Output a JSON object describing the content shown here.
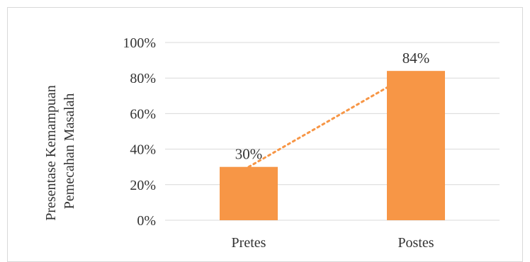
{
  "chart_data": {
    "type": "bar",
    "categories": [
      "Pretes",
      "Postes"
    ],
    "values": [
      30,
      84
    ],
    "data_labels": [
      "30%",
      "84%"
    ],
    "ylabel_lines": [
      "Presentase Kemampuan",
      "Pemecahan Masalah"
    ],
    "ylim": [
      0,
      100
    ],
    "yticks": [
      {
        "value": 0,
        "label": "0%"
      },
      {
        "value": 20,
        "label": "20%"
      },
      {
        "value": 40,
        "label": "40%"
      },
      {
        "value": 60,
        "label": "60%"
      },
      {
        "value": 80,
        "label": "80%"
      },
      {
        "value": 100,
        "label": "100%"
      }
    ],
    "trendline": "linear, dotted",
    "grid": true,
    "legend": "none",
    "colors": {
      "bar": "#F79646",
      "trendline": "#F79646",
      "grid": "#d9d9d9",
      "text": "#333333"
    }
  }
}
